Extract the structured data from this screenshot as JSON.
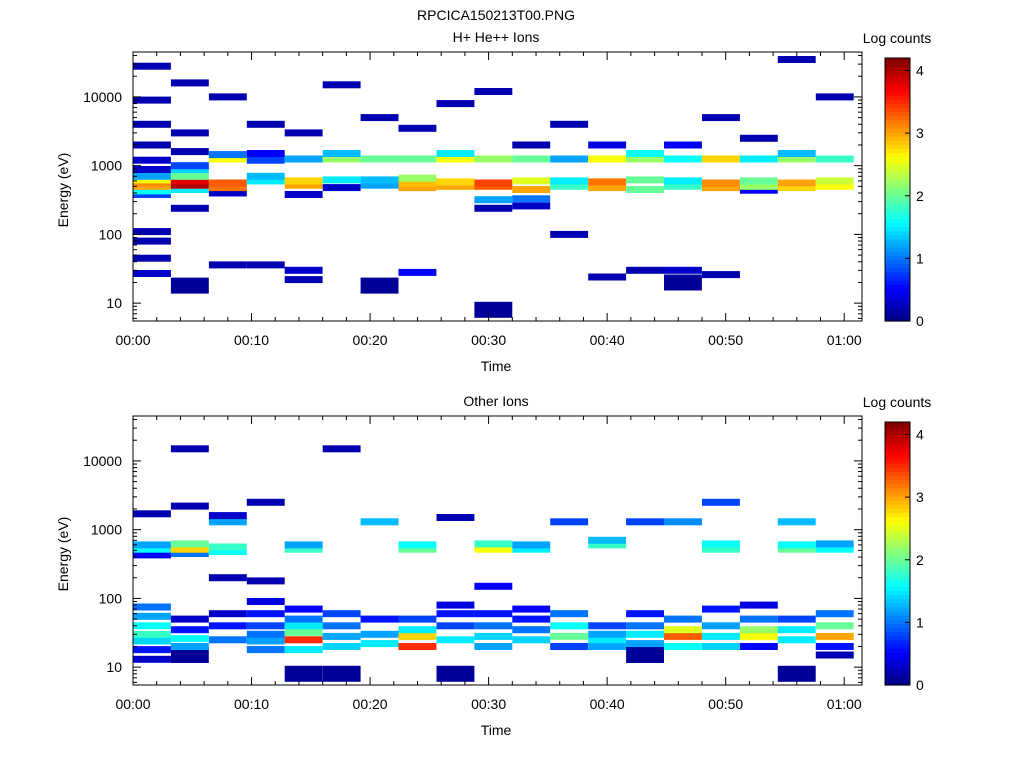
{
  "figure_title": "RPCICA150213T00.PNG",
  "chart_data": [
    {
      "type": "heatmap",
      "title": "H+ He++ Ions",
      "xlabel": "Time",
      "ylabel": "Energy (eV)",
      "x_ticks": [
        "00:00",
        "00:10",
        "00:20",
        "00:30",
        "00:40",
        "00:50",
        "01:00"
      ],
      "x_range_minutes": [
        0,
        61.5
      ],
      "y_ticks": [
        "10",
        "100",
        "1000",
        "10000"
      ],
      "y_range_eV": [
        5.5,
        45000
      ],
      "y_scale": "log",
      "colorbar": {
        "label": "Log counts",
        "range": [
          0,
          4.2
        ],
        "ticks": [
          "0",
          "1",
          "2",
          "3",
          "4"
        ],
        "colormap": "jet"
      },
      "time_bin_minutes": 3.2,
      "cells": [
        [
          0,
          27,
          0.3
        ],
        [
          0,
          45,
          0.2
        ],
        [
          0,
          80,
          0.2
        ],
        [
          0,
          110,
          0.2
        ],
        [
          0,
          380,
          0.8
        ],
        [
          0,
          430,
          1.6
        ],
        [
          0,
          500,
          3.0
        ],
        [
          0,
          560,
          3.1
        ],
        [
          0,
          620,
          2.6
        ],
        [
          0,
          700,
          1.2
        ],
        [
          0,
          880,
          0.3
        ],
        [
          0,
          1200,
          0.3
        ],
        [
          0,
          2000,
          0.2
        ],
        [
          0,
          4000,
          0.2
        ],
        [
          0,
          9000,
          0.2
        ],
        [
          0,
          28000,
          0.2
        ],
        [
          1,
          18,
          0.1
        ],
        [
          1,
          240,
          0.2
        ],
        [
          1,
          450,
          1.5
        ],
        [
          1,
          520,
          4.0
        ],
        [
          1,
          600,
          3.8
        ],
        [
          1,
          700,
          2.0
        ],
        [
          1,
          880,
          1.4
        ],
        [
          1,
          1000,
          0.8
        ],
        [
          1,
          1600,
          0.2
        ],
        [
          1,
          3000,
          0.2
        ],
        [
          1,
          16000,
          0.2
        ],
        [
          2,
          36,
          0.2
        ],
        [
          2,
          400,
          0.3
        ],
        [
          2,
          480,
          3.2
        ],
        [
          2,
          560,
          3.3
        ],
        [
          2,
          1250,
          2.6
        ],
        [
          2,
          1450,
          1.0
        ],
        [
          2,
          10000,
          0.2
        ],
        [
          3,
          36,
          0.2
        ],
        [
          3,
          600,
          1.5
        ],
        [
          3,
          700,
          1.3
        ],
        [
          3,
          1200,
          0.8
        ],
        [
          3,
          1500,
          0.5
        ],
        [
          3,
          4000,
          0.2
        ],
        [
          4,
          22,
          0.2
        ],
        [
          4,
          30,
          0.3
        ],
        [
          4,
          380,
          0.3
        ],
        [
          4,
          520,
          3.0
        ],
        [
          4,
          600,
          2.8
        ],
        [
          4,
          1250,
          1.2
        ],
        [
          4,
          3000,
          0.2
        ],
        [
          5,
          480,
          0.3
        ],
        [
          5,
          620,
          1.5
        ],
        [
          5,
          1250,
          2.2
        ],
        [
          5,
          1500,
          1.3
        ],
        [
          5,
          15000,
          0.2
        ],
        [
          6,
          18,
          0.1
        ],
        [
          6,
          520,
          1.2
        ],
        [
          6,
          620,
          1.3
        ],
        [
          6,
          1250,
          2.0
        ],
        [
          6,
          5000,
          0.2
        ],
        [
          7,
          28,
          0.5
        ],
        [
          7,
          480,
          3.0
        ],
        [
          7,
          560,
          2.9
        ],
        [
          7,
          660,
          2.2
        ],
        [
          7,
          1250,
          2.0
        ],
        [
          7,
          3500,
          0.2
        ],
        [
          8,
          500,
          3.0
        ],
        [
          8,
          580,
          2.8
        ],
        [
          8,
          1250,
          2.6
        ],
        [
          8,
          1500,
          1.5
        ],
        [
          8,
          8000,
          0.2
        ],
        [
          9,
          8,
          0.1
        ],
        [
          9,
          240,
          0.2
        ],
        [
          9,
          320,
          1.2
        ],
        [
          9,
          500,
          3.3
        ],
        [
          9,
          560,
          3.4
        ],
        [
          9,
          1250,
          2.2
        ],
        [
          9,
          12000,
          0.2
        ],
        [
          10,
          260,
          0.3
        ],
        [
          10,
          330,
          1.0
        ],
        [
          10,
          450,
          3.0
        ],
        [
          10,
          600,
          2.5
        ],
        [
          10,
          1250,
          2.0
        ],
        [
          10,
          2000,
          0.2
        ],
        [
          11,
          100,
          0.2
        ],
        [
          11,
          500,
          1.8
        ],
        [
          11,
          600,
          1.5
        ],
        [
          11,
          1250,
          1.2
        ],
        [
          11,
          4000,
          0.2
        ],
        [
          12,
          24,
          0.2
        ],
        [
          12,
          480,
          3.0
        ],
        [
          12,
          580,
          3.2
        ],
        [
          12,
          1250,
          2.6
        ],
        [
          12,
          2000,
          0.4
        ],
        [
          13,
          30,
          0.2
        ],
        [
          13,
          450,
          2.0
        ],
        [
          13,
          620,
          2.0
        ],
        [
          13,
          1250,
          2.2
        ],
        [
          13,
          1500,
          1.6
        ],
        [
          14,
          20,
          0.1
        ],
        [
          14,
          30,
          0.3
        ],
        [
          14,
          500,
          1.8
        ],
        [
          14,
          600,
          1.5
        ],
        [
          14,
          1250,
          1.6
        ],
        [
          14,
          2000,
          0.5
        ],
        [
          15,
          26,
          0.2
        ],
        [
          15,
          480,
          3.0
        ],
        [
          15,
          560,
          3.1
        ],
        [
          15,
          1250,
          2.8
        ],
        [
          15,
          5000,
          0.2
        ],
        [
          16,
          440,
          0.5
        ],
        [
          16,
          500,
          2.2
        ],
        [
          16,
          600,
          2.0
        ],
        [
          16,
          1250,
          1.5
        ],
        [
          16,
          2500,
          0.2
        ],
        [
          17,
          480,
          2.8
        ],
        [
          17,
          560,
          3.0
        ],
        [
          17,
          1250,
          2.2
        ],
        [
          17,
          1500,
          1.3
        ],
        [
          17,
          35000,
          0.2
        ],
        [
          18,
          500,
          2.6
        ],
        [
          18,
          600,
          2.4
        ],
        [
          18,
          1250,
          1.8
        ],
        [
          18,
          10000,
          0.2
        ]
      ]
    },
    {
      "type": "heatmap",
      "title": "Other Ions",
      "xlabel": "Time",
      "ylabel": "Energy (eV)",
      "x_ticks": [
        "00:00",
        "00:10",
        "00:20",
        "00:30",
        "00:40",
        "00:50",
        "01:00"
      ],
      "x_range_minutes": [
        0,
        61.5
      ],
      "y_ticks": [
        "10",
        "100",
        "1000",
        "10000"
      ],
      "y_range_eV": [
        5.5,
        45000
      ],
      "y_scale": "log",
      "colorbar": {
        "label": "Log counts",
        "range": [
          0,
          4.2
        ],
        "ticks": [
          "0",
          "1",
          "2",
          "3",
          "4"
        ],
        "colormap": "jet"
      },
      "time_bin_minutes": 3.2,
      "cells": [
        [
          0,
          13,
          0.3
        ],
        [
          0,
          18,
          0.6
        ],
        [
          0,
          24,
          1.4
        ],
        [
          0,
          30,
          1.8
        ],
        [
          0,
          40,
          1.6
        ],
        [
          0,
          55,
          1.2
        ],
        [
          0,
          75,
          1.0
        ],
        [
          0,
          430,
          0.5
        ],
        [
          0,
          520,
          1.6
        ],
        [
          0,
          600,
          1.2
        ],
        [
          0,
          1700,
          0.2
        ],
        [
          1,
          15,
          0.1
        ],
        [
          1,
          20,
          1.2
        ],
        [
          1,
          26,
          1.6
        ],
        [
          1,
          35,
          0.6
        ],
        [
          1,
          50,
          0.3
        ],
        [
          1,
          450,
          1.0
        ],
        [
          1,
          520,
          2.8
        ],
        [
          1,
          620,
          2.0
        ],
        [
          1,
          2200,
          0.2
        ],
        [
          1,
          15000,
          0.2
        ],
        [
          2,
          25,
          1.0
        ],
        [
          2,
          40,
          0.6
        ],
        [
          2,
          60,
          0.3
        ],
        [
          2,
          200,
          0.2
        ],
        [
          2,
          480,
          1.6
        ],
        [
          2,
          560,
          1.8
        ],
        [
          2,
          1300,
          1.2
        ],
        [
          2,
          1600,
          0.3
        ],
        [
          3,
          18,
          1.0
        ],
        [
          3,
          24,
          1.2
        ],
        [
          3,
          30,
          1.0
        ],
        [
          3,
          40,
          0.8
        ],
        [
          3,
          60,
          0.6
        ],
        [
          3,
          90,
          0.4
        ],
        [
          3,
          180,
          0.2
        ],
        [
          3,
          2500,
          0.2
        ],
        [
          4,
          8,
          0.1
        ],
        [
          4,
          18,
          1.5
        ],
        [
          4,
          25,
          3.5
        ],
        [
          4,
          32,
          2.0
        ],
        [
          4,
          40,
          1.5
        ],
        [
          4,
          50,
          1.0
        ],
        [
          4,
          70,
          0.5
        ],
        [
          4,
          520,
          1.8
        ],
        [
          4,
          600,
          1.2
        ],
        [
          5,
          8,
          0.1
        ],
        [
          5,
          20,
          1.4
        ],
        [
          5,
          28,
          1.2
        ],
        [
          5,
          40,
          1.0
        ],
        [
          5,
          60,
          0.8
        ],
        [
          5,
          15000,
          0.2
        ],
        [
          6,
          22,
          1.5
        ],
        [
          6,
          30,
          1.2
        ],
        [
          6,
          50,
          0.6
        ],
        [
          6,
          1300,
          1.3
        ],
        [
          7,
          20,
          3.5
        ],
        [
          7,
          28,
          2.8
        ],
        [
          7,
          35,
          1.5
        ],
        [
          7,
          50,
          0.8
        ],
        [
          7,
          520,
          2.0
        ],
        [
          7,
          600,
          1.6
        ],
        [
          8,
          8,
          0.1
        ],
        [
          8,
          25,
          1.5
        ],
        [
          8,
          40,
          0.8
        ],
        [
          8,
          60,
          0.6
        ],
        [
          8,
          80,
          0.4
        ],
        [
          8,
          1500,
          0.2
        ],
        [
          9,
          20,
          1.2
        ],
        [
          9,
          28,
          1.4
        ],
        [
          9,
          40,
          1.0
        ],
        [
          9,
          60,
          0.6
        ],
        [
          9,
          150,
          0.5
        ],
        [
          9,
          520,
          2.6
        ],
        [
          9,
          620,
          1.8
        ],
        [
          10,
          25,
          1.4
        ],
        [
          10,
          35,
          1.0
        ],
        [
          10,
          50,
          0.6
        ],
        [
          10,
          70,
          0.5
        ],
        [
          10,
          520,
          1.5
        ],
        [
          10,
          600,
          1.2
        ],
        [
          11,
          20,
          0.8
        ],
        [
          11,
          28,
          2.0
        ],
        [
          11,
          40,
          1.6
        ],
        [
          11,
          60,
          1.0
        ],
        [
          11,
          1300,
          0.8
        ],
        [
          12,
          20,
          1.2
        ],
        [
          12,
          25,
          1.5
        ],
        [
          12,
          30,
          1.2
        ],
        [
          12,
          40,
          0.8
        ],
        [
          12,
          600,
          1.8
        ],
        [
          12,
          700,
          1.3
        ],
        [
          13,
          15,
          0.1
        ],
        [
          13,
          22,
          1.2
        ],
        [
          13,
          30,
          1.5
        ],
        [
          13,
          40,
          1.0
        ],
        [
          13,
          60,
          0.6
        ],
        [
          13,
          1300,
          0.8
        ],
        [
          14,
          20,
          1.6
        ],
        [
          14,
          28,
          3.3
        ],
        [
          14,
          35,
          2.5
        ],
        [
          14,
          50,
          1.0
        ],
        [
          14,
          1300,
          1.1
        ],
        [
          15,
          20,
          1.4
        ],
        [
          15,
          28,
          1.5
        ],
        [
          15,
          40,
          1.2
        ],
        [
          15,
          70,
          0.6
        ],
        [
          15,
          520,
          1.8
        ],
        [
          15,
          620,
          1.6
        ],
        [
          15,
          2500,
          0.8
        ],
        [
          16,
          20,
          0.5
        ],
        [
          16,
          28,
          2.6
        ],
        [
          16,
          35,
          2.2
        ],
        [
          16,
          50,
          1.0
        ],
        [
          16,
          80,
          0.4
        ],
        [
          17,
          8,
          0.1
        ],
        [
          17,
          25,
          1.5
        ],
        [
          17,
          35,
          1.5
        ],
        [
          17,
          50,
          0.8
        ],
        [
          17,
          520,
          2.0
        ],
        [
          17,
          600,
          1.6
        ],
        [
          17,
          1300,
          1.3
        ],
        [
          18,
          15,
          0.2
        ],
        [
          18,
          20,
          0.6
        ],
        [
          18,
          28,
          3.0
        ],
        [
          18,
          40,
          2.0
        ],
        [
          18,
          60,
          1.0
        ],
        [
          18,
          520,
          1.6
        ],
        [
          18,
          620,
          1.2
        ]
      ]
    }
  ]
}
